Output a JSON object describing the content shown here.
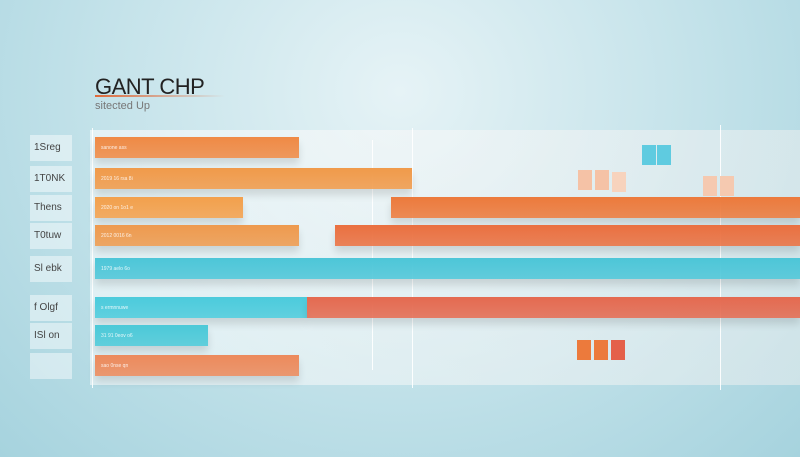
{
  "chart_data": {
    "type": "gantt",
    "title": "GANT CHP",
    "subtitle": "sitected Up",
    "xlim": [
      0,
      100
    ],
    "tasks": [
      {
        "label": "1Sreg",
        "bar_label": "sanone ass",
        "segments": [
          {
            "start": 0,
            "end": 29,
            "color": "#ef8a45"
          }
        ]
      },
      {
        "label": "1T0NK",
        "bar_label": "2019 16 rsa 8i",
        "segments": [
          {
            "start": 0,
            "end": 45,
            "color": "#f09a4a"
          }
        ]
      },
      {
        "label": "Thens",
        "bar_label": "2020 on 1o1 e",
        "segments": [
          {
            "start": 0,
            "end": 21,
            "color": "#f3a04c"
          },
          {
            "start": 42,
            "end": 100,
            "color": "#ec7a3c"
          }
        ]
      },
      {
        "label": "T0tuw",
        "bar_label": "2012 0016 6n",
        "segments": [
          {
            "start": 0,
            "end": 29,
            "color": "#ee9a4e"
          },
          {
            "start": 34,
            "end": 100,
            "color": "#ea7040"
          }
        ]
      },
      {
        "label": "Sl ebk",
        "bar_label": "1979 aelo 6o",
        "segments": [
          {
            "start": 0,
            "end": 100,
            "color": "#4dc6d8"
          }
        ]
      },
      {
        "label": "f Olgf",
        "bar_label": "s ermnnuwe",
        "segments": [
          {
            "start": 0,
            "end": 30,
            "color": "#4ccbdc"
          },
          {
            "start": 30,
            "end": 100,
            "color": "#e46a50"
          }
        ]
      },
      {
        "label": "ISl on",
        "bar_label": "31 91 0eov o6",
        "segments": [
          {
            "start": 0,
            "end": 16,
            "color": "#4cc9d8"
          }
        ]
      },
      {
        "label": "",
        "bar_label": "sao 0nse qn",
        "segments": [
          {
            "start": 0,
            "end": 29,
            "color": "#ec8a5c"
          }
        ]
      }
    ],
    "colors": {
      "orange": "#ef8a45",
      "cyan": "#4dc6d8",
      "red": "#e46a50"
    }
  }
}
